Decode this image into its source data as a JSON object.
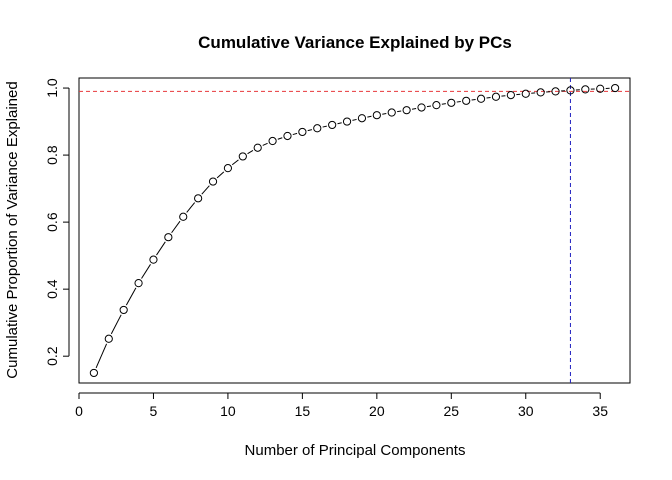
{
  "chart_data": {
    "type": "scatter",
    "title": "Cumulative Variance Explained by PCs",
    "xlabel": "Number of Principal Components",
    "ylabel": "Cumulative Proportion of Variance Explained",
    "xlim": [
      0,
      37
    ],
    "ylim": [
      0.12,
      1.03
    ],
    "xticks": [
      "0",
      "5",
      "10",
      "15",
      "20",
      "25",
      "30",
      "35"
    ],
    "yticks": [
      "0.2",
      "0.4",
      "0.6",
      "0.8",
      "1.0"
    ],
    "grid": false,
    "legend": "none",
    "series": [
      {
        "x": [
          1,
          2,
          3,
          4,
          5,
          6,
          7,
          8,
          9,
          10,
          11,
          12,
          13,
          14,
          15,
          16,
          17,
          18,
          19,
          20,
          21,
          22,
          23,
          24,
          25,
          26,
          27,
          28,
          29,
          30,
          31,
          32,
          33,
          34,
          35,
          36
        ],
        "y": [
          0.15,
          0.252,
          0.338,
          0.418,
          0.488,
          0.555,
          0.616,
          0.671,
          0.721,
          0.761,
          0.796,
          0.822,
          0.842,
          0.857,
          0.869,
          0.88,
          0.89,
          0.9,
          0.91,
          0.919,
          0.927,
          0.934,
          0.942,
          0.949,
          0.956,
          0.962,
          0.968,
          0.974,
          0.979,
          0.983,
          0.987,
          0.99,
          0.993,
          0.996,
          0.998,
          1.0
        ]
      }
    ],
    "hline": {
      "y": 0.99,
      "color": "#e8383b"
    },
    "vline": {
      "x": 33,
      "color": "#2020c0"
    },
    "colors": {
      "points": "#000000",
      "axis": "#000000"
    }
  }
}
